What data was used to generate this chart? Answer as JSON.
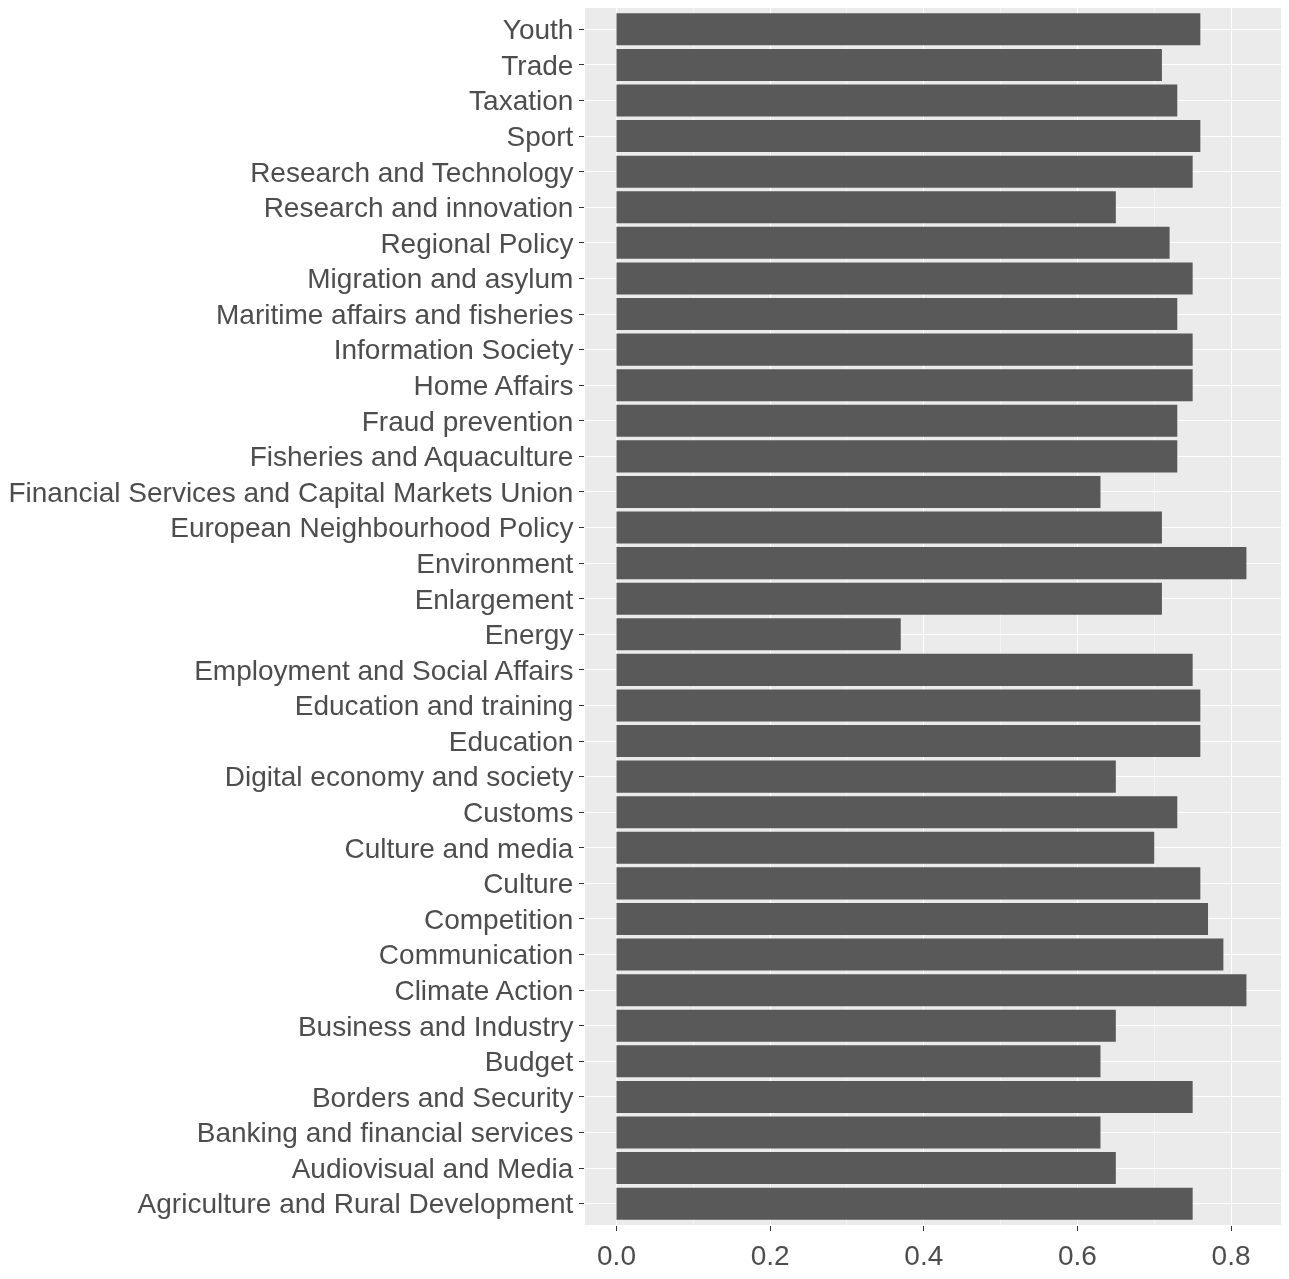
{
  "chart_data": {
    "type": "bar",
    "orientation": "horizontal",
    "categories": [
      "Youth",
      "Trade",
      "Taxation",
      "Sport",
      "Research and Technology",
      "Research and innovation",
      "Regional Policy",
      "Migration and asylum",
      "Maritime affairs and fisheries",
      "Information Society",
      "Home Affairs",
      "Fraud prevention",
      "Fisheries and Aquaculture",
      "Financial Services and Capital Markets Union",
      "European Neighbourhood Policy",
      "Environment",
      "Enlargement",
      "Energy",
      "Employment and Social Affairs",
      "Education and training",
      "Education",
      "Digital economy and society",
      "Customs",
      "Culture and media",
      "Culture",
      "Competition",
      "Communication",
      "Climate Action",
      "Business and Industry",
      "Budget",
      "Borders and Security",
      "Banking and financial services",
      "Audiovisual and Media",
      "Agriculture and Rural Development"
    ],
    "values": [
      0.76,
      0.71,
      0.73,
      0.76,
      0.75,
      0.65,
      0.72,
      0.75,
      0.73,
      0.75,
      0.75,
      0.73,
      0.73,
      0.63,
      0.71,
      0.82,
      0.71,
      0.37,
      0.75,
      0.76,
      0.76,
      0.65,
      0.73,
      0.7,
      0.76,
      0.77,
      0.79,
      0.82,
      0.65,
      0.63,
      0.75,
      0.63,
      0.65,
      0.75
    ],
    "color": "#595959",
    "xlim": [
      -0.041,
      0.865
    ],
    "xticks": [
      {
        "value": 0,
        "label": "0.0"
      },
      {
        "value": 0.2,
        "label": "0.2"
      },
      {
        "value": 0.4,
        "label": "0.4"
      },
      {
        "value": 0.6,
        "label": "0.6"
      },
      {
        "value": 0.8,
        "label": "0.8"
      }
    ],
    "grid": true,
    "legend": false
  }
}
